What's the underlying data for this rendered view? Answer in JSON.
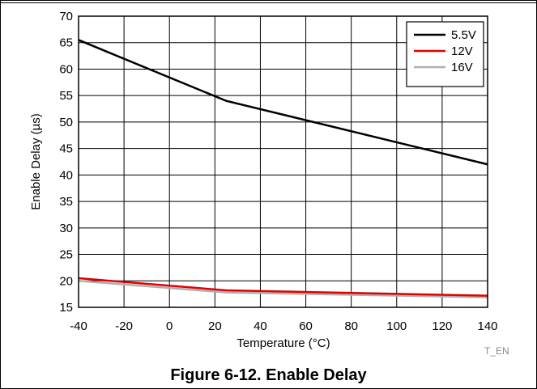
{
  "figure": {
    "caption": "Figure 6-12. Enable Delay",
    "code": "T_EN"
  },
  "chart_data": {
    "type": "line",
    "xlabel": "Temperature (°C)",
    "ylabel": "Enable Delay (µs)",
    "xlim": [
      -40,
      140
    ],
    "ylim": [
      15,
      70
    ],
    "xticks": [
      "-40",
      "-20",
      "0",
      "20",
      "40",
      "60",
      "80",
      "100",
      "120",
      "140"
    ],
    "yticks": [
      "15",
      "20",
      "25",
      "30",
      "35",
      "40",
      "45",
      "50",
      "55",
      "60",
      "65",
      "70"
    ],
    "grid": true,
    "legend_position": "top-right",
    "series": [
      {
        "name": "5.5V",
        "color": "#000000",
        "x": [
          -40,
          25,
          140
        ],
        "y": [
          65.5,
          54,
          42
        ]
      },
      {
        "name": "12V",
        "color": "#e00000",
        "x": [
          -40,
          25,
          140
        ],
        "y": [
          20.5,
          18.2,
          17.2
        ]
      },
      {
        "name": "16V",
        "color": "#b0b0b0",
        "x": [
          -40,
          25,
          140
        ],
        "y": [
          20.0,
          17.8,
          16.9
        ]
      }
    ]
  }
}
